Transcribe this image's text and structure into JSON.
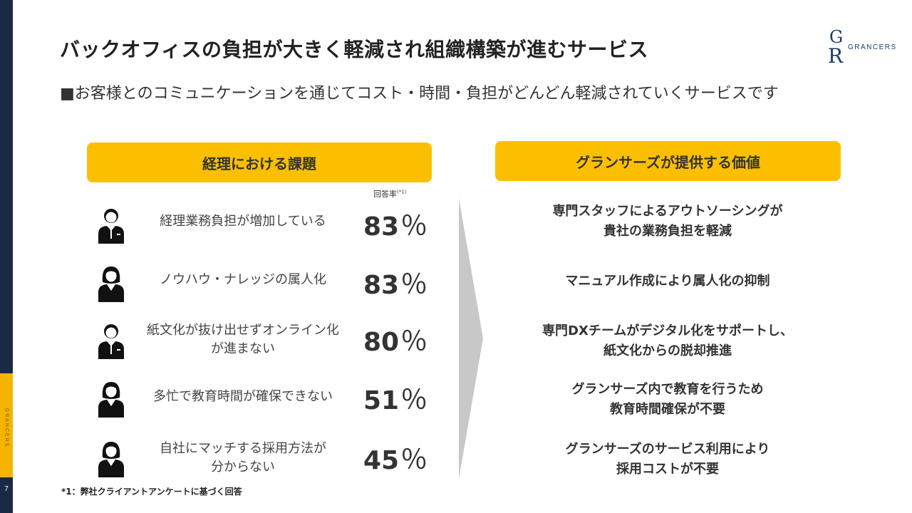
{
  "page": {
    "title": "バックオフィスの負担が大きく軽減され組織構築が進むサービス",
    "subtitle": "■お客様とのコミュニケーションを通じてコスト・時間・負担がどんどん軽減されていくサービスです",
    "page_number": "7",
    "side_label": "GRANCERS",
    "footnote": "*1：弊社クライアントアンケートに基づく回答"
  },
  "logo": {
    "mark_top": "G",
    "mark_bottom": "R",
    "wordmark": "GRANCERS"
  },
  "left": {
    "header": "経理における課題",
    "rate_label": "回答率",
    "rate_note": "(*1)",
    "rows": [
      {
        "text1": "経理業務負担が増加している",
        "text2": "",
        "value": "83",
        "unit": "％",
        "icon": "person-male-icon"
      },
      {
        "text1": "ノウハウ・ナレッジの属人化",
        "text2": "",
        "value": "83",
        "unit": "％",
        "icon": "person-female-icon"
      },
      {
        "text1": "紙文化が抜け出せずオンライン化",
        "text2": "が進まない",
        "value": "80",
        "unit": "％",
        "icon": "person-male-icon"
      },
      {
        "text1": "多忙で教育時間が確保できない",
        "text2": "",
        "value": "51",
        "unit": "％",
        "icon": "person-female-icon"
      },
      {
        "text1": "自社にマッチする採用方法が",
        "text2": "分からない",
        "value": "45",
        "unit": "％",
        "icon": "person-female-icon"
      }
    ]
  },
  "right": {
    "header": "グランサーズが提供する価値",
    "rows": [
      {
        "text1": "専門スタッフによるアウトソーシングが",
        "text2": "貴社の業務負担を軽減"
      },
      {
        "text1": "マニュアル作成により属人化の抑制",
        "text2": ""
      },
      {
        "text1": "専門DXチームがデジタル化をサポートし、",
        "text2": "紙文化からの脱却推進"
      },
      {
        "text1": "グランサーズ内で教育を行うため",
        "text2": "教育時間確保が不要"
      },
      {
        "text1": "グランサーズのサービス利用により",
        "text2": "採用コストが不要"
      }
    ]
  },
  "colors": {
    "accent": "#fcbf00",
    "sidebar": "#1b2a44",
    "arrow": "#c8c8c8",
    "icon": "#111111"
  }
}
